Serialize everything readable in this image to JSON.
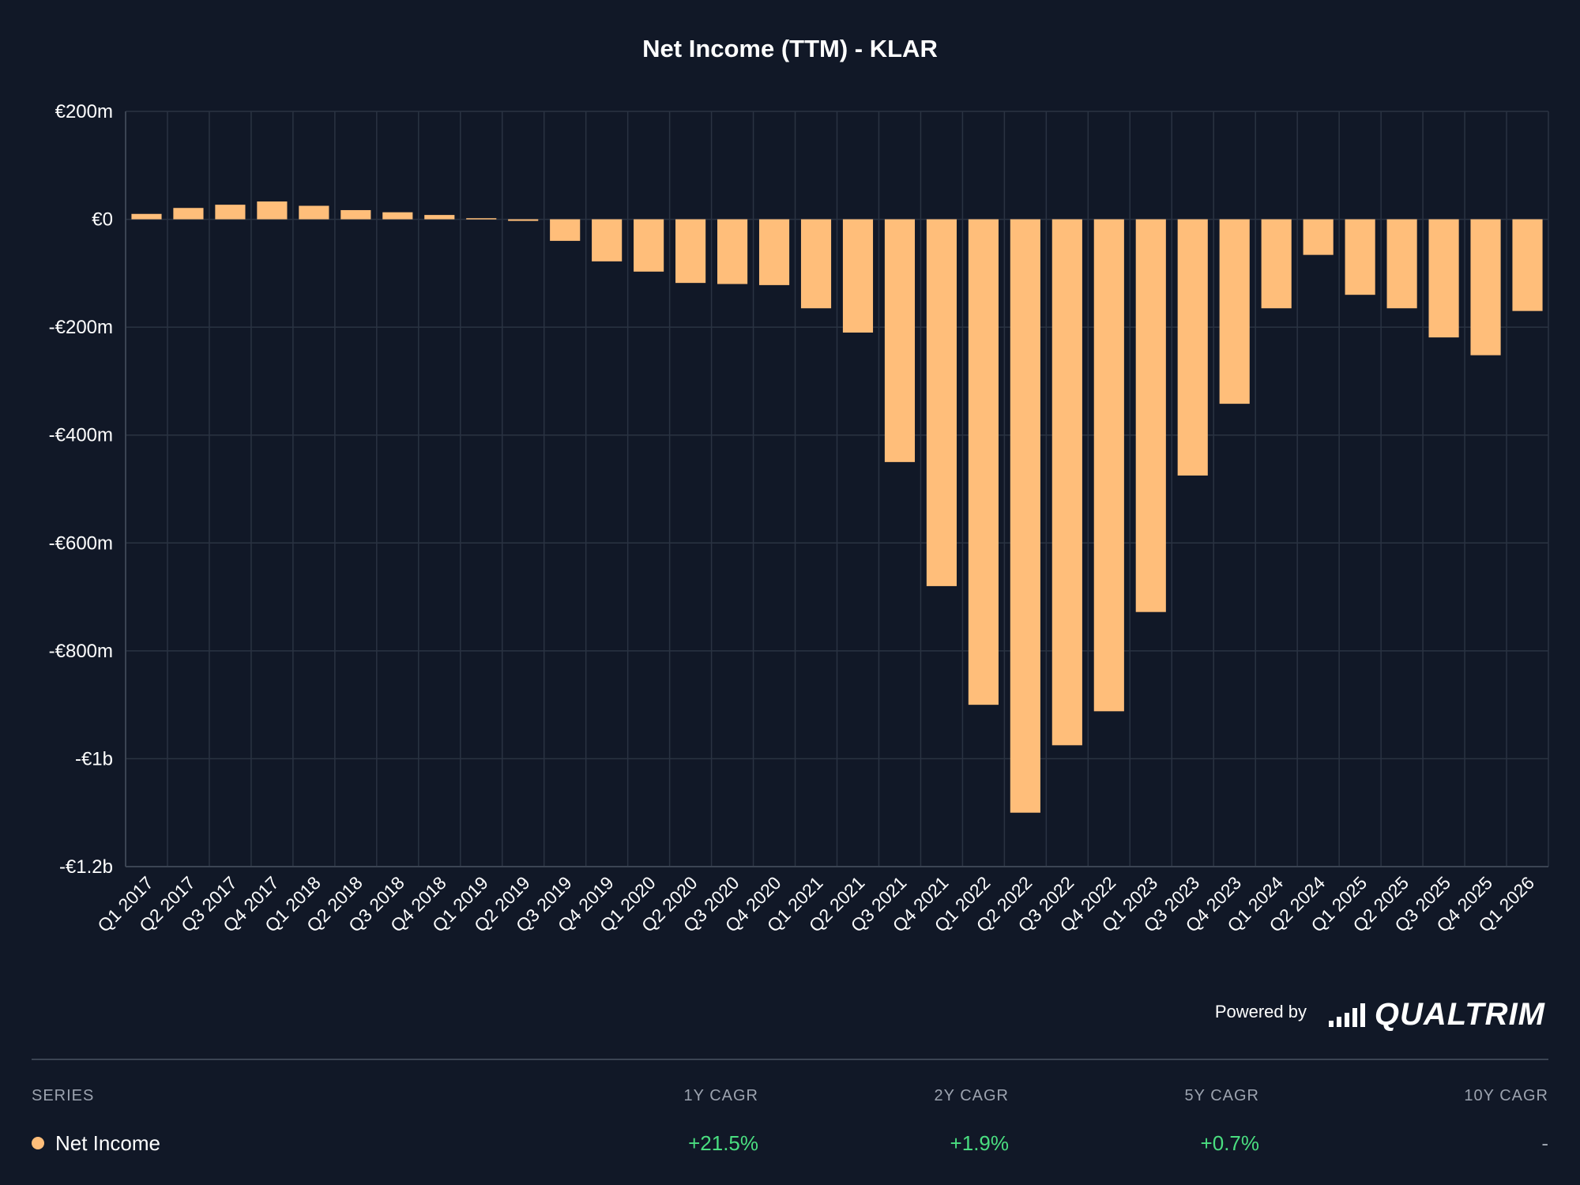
{
  "chart_data": {
    "type": "bar",
    "title": "Net Income (TTM) - KLAR",
    "xlabel": "",
    "ylabel": "",
    "ylim": [
      -1200,
      200
    ],
    "yticks": [
      200,
      0,
      -200,
      -400,
      -600,
      -800,
      -1000,
      -1200
    ],
    "ytick_labels": [
      "€200m",
      "€0",
      "-€200m",
      "-€400m",
      "-€600m",
      "-€800m",
      "-€1b",
      "-€1.2b"
    ],
    "grid": true,
    "categories": [
      "Q1 2017",
      "Q2 2017",
      "Q3 2017",
      "Q4 2017",
      "Q1 2018",
      "Q2 2018",
      "Q3 2018",
      "Q4 2018",
      "Q1 2019",
      "Q2 2019",
      "Q3 2019",
      "Q4 2019",
      "Q1 2020",
      "Q2 2020",
      "Q3 2020",
      "Q4 2020",
      "Q1 2021",
      "Q2 2021",
      "Q3 2021",
      "Q4 2021",
      "Q1 2022",
      "Q2 2022",
      "Q3 2022",
      "Q4 2022",
      "Q1 2023",
      "Q3 2023",
      "Q4 2023",
      "Q1 2024",
      "Q2 2024",
      "Q1 2025",
      "Q2 2025",
      "Q3 2025",
      "Q4 2025",
      "Q1 2026"
    ],
    "series": [
      {
        "name": "Net Income",
        "color": "#ffbe7a",
        "values": [
          10,
          21,
          27,
          33,
          25,
          17,
          13,
          8,
          2,
          -3,
          -40,
          -78,
          -97,
          -118,
          -120,
          -122,
          -165,
          -210,
          -450,
          -680,
          -900,
          -1100,
          -975,
          -912,
          -728,
          -475,
          -342,
          -165,
          -66,
          -140,
          -165,
          -219,
          -252,
          -170
        ]
      }
    ]
  },
  "footer": {
    "powered_by": "Powered by",
    "brand": "QUALTRIM"
  },
  "table": {
    "headers": {
      "series": "SERIES",
      "cagr_1y": "1Y CAGR",
      "cagr_2y": "2Y CAGR",
      "cagr_5y": "5Y CAGR",
      "cagr_10y": "10Y CAGR"
    },
    "row": {
      "series": "Net Income",
      "cagr_1y": "+21.5%",
      "cagr_2y": "+1.9%",
      "cagr_5y": "+0.7%",
      "cagr_10y": "-"
    }
  }
}
